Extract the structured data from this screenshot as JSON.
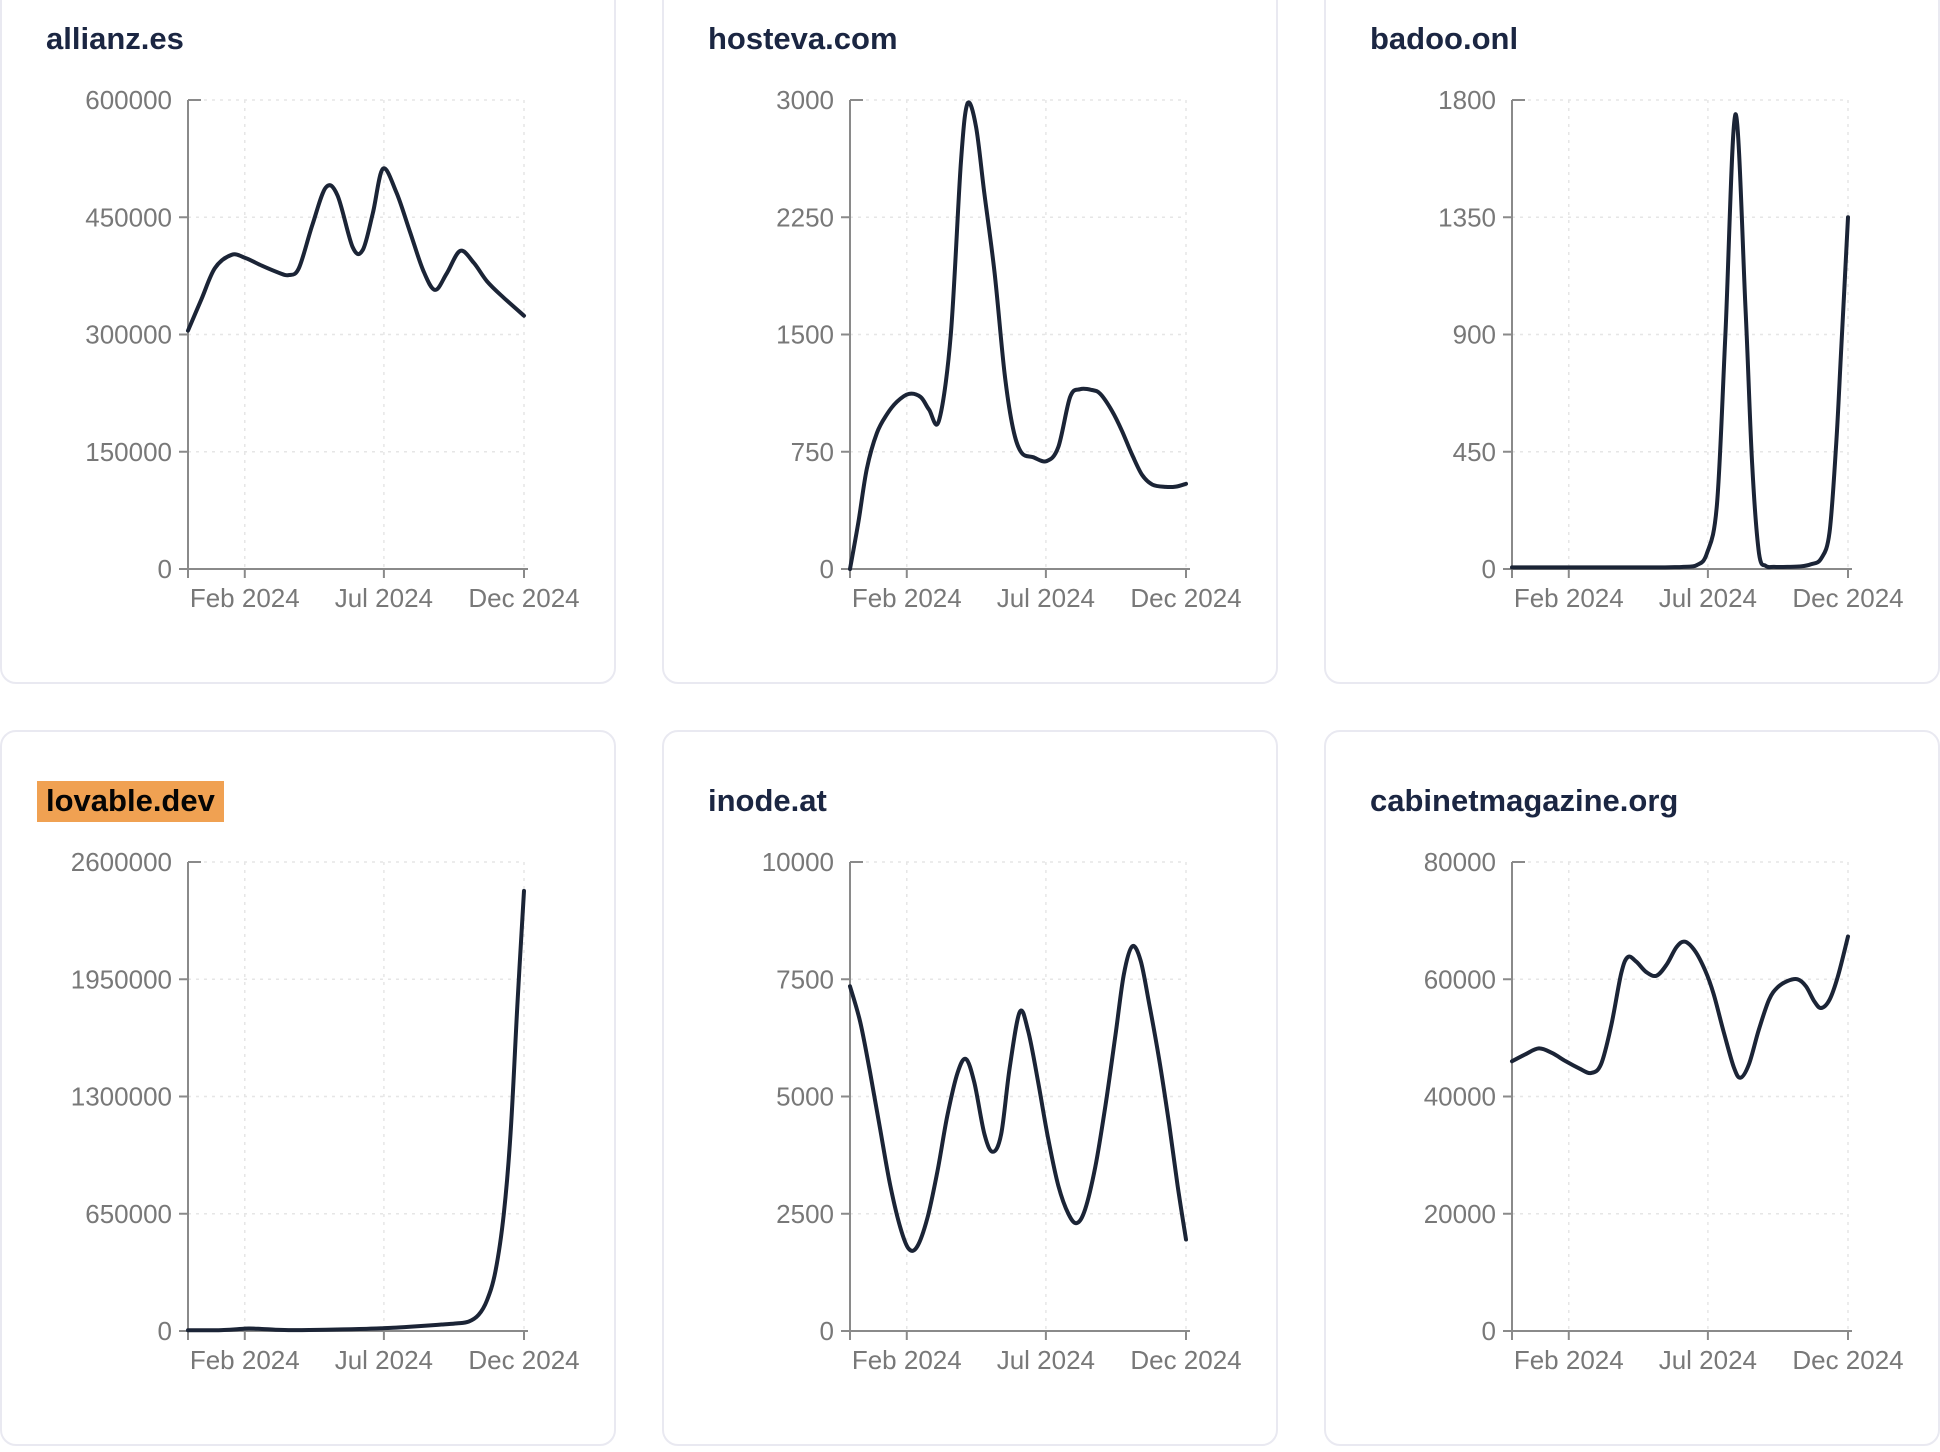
{
  "theme": {
    "background": "#ffffff",
    "card_border": "#e9e9f1",
    "title_color": "#1b2642",
    "line_color": "#1b2436",
    "tick_label_color": "#787878",
    "axis_color": "#8a8a8a",
    "grid_color": "#e6e6e6",
    "highlight_bg": "#f0a152",
    "highlight_text": "#050505"
  },
  "x_axis": {
    "tick_labels": [
      "Feb 2024",
      "Jul 2024",
      "Dec 2024"
    ],
    "tick_positions": [
      0.169,
      0.583,
      1.0
    ],
    "domain": [
      "Jan 2024",
      "Dec 2024"
    ]
  },
  "chart_data": [
    {
      "type": "line",
      "title": "allianz.es",
      "title_highlight": false,
      "ylim": [
        0,
        600000
      ],
      "yticks": [
        0,
        150000,
        300000,
        450000,
        600000
      ],
      "grid": true,
      "legend": "none",
      "points": [
        [
          0,
          305000
        ],
        [
          0.04,
          345000
        ],
        [
          0.08,
          385000
        ],
        [
          0.13,
          402000
        ],
        [
          0.17,
          398000
        ],
        [
          0.22,
          388000
        ],
        [
          0.27,
          379000
        ],
        [
          0.3,
          376000
        ],
        [
          0.33,
          385000
        ],
        [
          0.37,
          440000
        ],
        [
          0.41,
          488000
        ],
        [
          0.445,
          478000
        ],
        [
          0.49,
          412000
        ],
        [
          0.52,
          408000
        ],
        [
          0.55,
          455000
        ],
        [
          0.58,
          512000
        ],
        [
          0.62,
          482000
        ],
        [
          0.66,
          432000
        ],
        [
          0.7,
          382000
        ],
        [
          0.735,
          357000
        ],
        [
          0.77,
          378000
        ],
        [
          0.81,
          407000
        ],
        [
          0.85,
          392000
        ],
        [
          0.89,
          368000
        ],
        [
          0.94,
          347000
        ],
        [
          1,
          324000
        ]
      ]
    },
    {
      "type": "line",
      "title": "hosteva.com",
      "title_highlight": false,
      "ylim": [
        0,
        3000
      ],
      "yticks": [
        0,
        750,
        1500,
        2250,
        3000
      ],
      "grid": true,
      "legend": "none",
      "points": [
        [
          0,
          0
        ],
        [
          0.025,
          300
        ],
        [
          0.05,
          640
        ],
        [
          0.08,
          870
        ],
        [
          0.11,
          990
        ],
        [
          0.14,
          1070
        ],
        [
          0.175,
          1120
        ],
        [
          0.21,
          1100
        ],
        [
          0.235,
          1020
        ],
        [
          0.265,
          950
        ],
        [
          0.3,
          1500
        ],
        [
          0.33,
          2600
        ],
        [
          0.35,
          2980
        ],
        [
          0.375,
          2830
        ],
        [
          0.4,
          2400
        ],
        [
          0.43,
          1900
        ],
        [
          0.46,
          1250
        ],
        [
          0.485,
          900
        ],
        [
          0.51,
          745
        ],
        [
          0.545,
          715
        ],
        [
          0.585,
          690
        ],
        [
          0.62,
          780
        ],
        [
          0.655,
          1100
        ],
        [
          0.685,
          1150
        ],
        [
          0.72,
          1145
        ],
        [
          0.745,
          1120
        ],
        [
          0.78,
          1010
        ],
        [
          0.81,
          880
        ],
        [
          0.84,
          730
        ],
        [
          0.87,
          600
        ],
        [
          0.9,
          540
        ],
        [
          0.94,
          525
        ],
        [
          0.97,
          527
        ],
        [
          1,
          545
        ]
      ]
    },
    {
      "type": "line",
      "title": "badoo.onl",
      "title_highlight": false,
      "ylim": [
        0,
        1800
      ],
      "yticks": [
        0,
        450,
        900,
        1350,
        1800
      ],
      "grid": true,
      "legend": "none",
      "points": [
        [
          0,
          6
        ],
        [
          0.06,
          6
        ],
        [
          0.12,
          6
        ],
        [
          0.18,
          6
        ],
        [
          0.24,
          6
        ],
        [
          0.3,
          6
        ],
        [
          0.36,
          6
        ],
        [
          0.42,
          6
        ],
        [
          0.47,
          7
        ],
        [
          0.51,
          8
        ],
        [
          0.55,
          15
        ],
        [
          0.58,
          60
        ],
        [
          0.61,
          250
        ],
        [
          0.635,
          900
        ],
        [
          0.665,
          1745
        ],
        [
          0.695,
          1000
        ],
        [
          0.715,
          400
        ],
        [
          0.735,
          60
        ],
        [
          0.755,
          12
        ],
        [
          0.78,
          8
        ],
        [
          0.82,
          8
        ],
        [
          0.86,
          10
        ],
        [
          0.89,
          18
        ],
        [
          0.92,
          40
        ],
        [
          0.945,
          140
        ],
        [
          0.965,
          480
        ],
        [
          0.98,
          850
        ],
        [
          1,
          1350
        ]
      ]
    },
    {
      "type": "line",
      "title": "lovable.dev",
      "title_highlight": true,
      "ylim": [
        0,
        2600000
      ],
      "yticks": [
        0,
        650000,
        1300000,
        1950000,
        2600000
      ],
      "grid": true,
      "legend": "none",
      "points": [
        [
          0,
          4000
        ],
        [
          0.05,
          4000
        ],
        [
          0.1,
          5000
        ],
        [
          0.14,
          9000
        ],
        [
          0.18,
          14000
        ],
        [
          0.22,
          11000
        ],
        [
          0.26,
          7000
        ],
        [
          0.31,
          5000
        ],
        [
          0.36,
          5500
        ],
        [
          0.41,
          7000
        ],
        [
          0.46,
          9000
        ],
        [
          0.51,
          11000
        ],
        [
          0.56,
          14000
        ],
        [
          0.61,
          18000
        ],
        [
          0.66,
          24000
        ],
        [
          0.71,
          30000
        ],
        [
          0.755,
          36000
        ],
        [
          0.8,
          42000
        ],
        [
          0.835,
          52000
        ],
        [
          0.865,
          90000
        ],
        [
          0.89,
          170000
        ],
        [
          0.915,
          330000
        ],
        [
          0.94,
          650000
        ],
        [
          0.96,
          1100000
        ],
        [
          0.98,
          1800000
        ],
        [
          1,
          2440000
        ]
      ]
    },
    {
      "type": "line",
      "title": "inode.at",
      "title_highlight": false,
      "ylim": [
        0,
        10000
      ],
      "yticks": [
        0,
        2500,
        5000,
        7500,
        10000
      ],
      "grid": true,
      "legend": "none",
      "points": [
        [
          0,
          7350
        ],
        [
          0.03,
          6600
        ],
        [
          0.06,
          5500
        ],
        [
          0.09,
          4300
        ],
        [
          0.12,
          3100
        ],
        [
          0.15,
          2200
        ],
        [
          0.175,
          1750
        ],
        [
          0.2,
          1800
        ],
        [
          0.23,
          2400
        ],
        [
          0.26,
          3400
        ],
        [
          0.29,
          4600
        ],
        [
          0.32,
          5500
        ],
        [
          0.345,
          5800
        ],
        [
          0.37,
          5300
        ],
        [
          0.4,
          4200
        ],
        [
          0.425,
          3820
        ],
        [
          0.45,
          4200
        ],
        [
          0.475,
          5600
        ],
        [
          0.505,
          6800
        ],
        [
          0.53,
          6400
        ],
        [
          0.56,
          5300
        ],
        [
          0.59,
          4100
        ],
        [
          0.62,
          3100
        ],
        [
          0.65,
          2500
        ],
        [
          0.675,
          2300
        ],
        [
          0.7,
          2600
        ],
        [
          0.73,
          3500
        ],
        [
          0.76,
          4800
        ],
        [
          0.79,
          6300
        ],
        [
          0.815,
          7600
        ],
        [
          0.84,
          8200
        ],
        [
          0.865,
          7900
        ],
        [
          0.89,
          7000
        ],
        [
          0.92,
          5800
        ],
        [
          0.95,
          4400
        ],
        [
          0.975,
          3100
        ],
        [
          1,
          1950
        ]
      ]
    },
    {
      "type": "line",
      "title": "cabinetmagazine.org",
      "title_highlight": false,
      "ylim": [
        0,
        80000
      ],
      "yticks": [
        0,
        20000,
        40000,
        60000,
        80000
      ],
      "grid": true,
      "legend": "none",
      "points": [
        [
          0,
          46000
        ],
        [
          0.04,
          47200
        ],
        [
          0.08,
          48200
        ],
        [
          0.12,
          47400
        ],
        [
          0.16,
          46000
        ],
        [
          0.2,
          44800
        ],
        [
          0.235,
          44000
        ],
        [
          0.265,
          45500
        ],
        [
          0.295,
          52000
        ],
        [
          0.325,
          61000
        ],
        [
          0.345,
          63800
        ],
        [
          0.37,
          63000
        ],
        [
          0.4,
          61200
        ],
        [
          0.43,
          60600
        ],
        [
          0.46,
          62500
        ],
        [
          0.49,
          65500
        ],
        [
          0.515,
          66400
        ],
        [
          0.545,
          64800
        ],
        [
          0.575,
          61500
        ],
        [
          0.6,
          57500
        ],
        [
          0.63,
          51000
        ],
        [
          0.66,
          45000
        ],
        [
          0.68,
          43200
        ],
        [
          0.705,
          45500
        ],
        [
          0.735,
          51500
        ],
        [
          0.765,
          56500
        ],
        [
          0.79,
          58600
        ],
        [
          0.82,
          59700
        ],
        [
          0.85,
          60000
        ],
        [
          0.875,
          58800
        ],
        [
          0.9,
          56200
        ],
        [
          0.92,
          55100
        ],
        [
          0.945,
          56500
        ],
        [
          0.97,
          60500
        ],
        [
          1,
          67300
        ]
      ]
    }
  ]
}
